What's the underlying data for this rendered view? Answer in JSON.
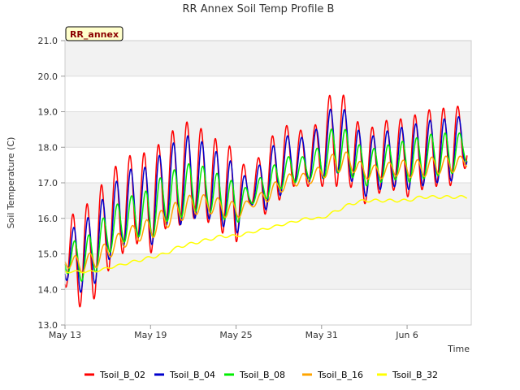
{
  "chart_data": {
    "type": "line",
    "title": "RR Annex Soil Temp Profile B",
    "xlabel": "Time",
    "ylabel": "Soil Temperature (C)",
    "ylim": [
      13.0,
      21.0
    ],
    "xlim_days": [
      0,
      28.5
    ],
    "x_ticks": [
      {
        "day": 0,
        "label": "May 13"
      },
      {
        "day": 6,
        "label": "May 19"
      },
      {
        "day": 12,
        "label": "May 25"
      },
      {
        "day": 18,
        "label": "May 31"
      },
      {
        "day": 24,
        "label": "Jun 6"
      }
    ],
    "y_ticks": [
      "13.0",
      "14.0",
      "15.0",
      "16.0",
      "17.0",
      "18.0",
      "19.0",
      "20.0",
      "21.0"
    ],
    "annotation": "RR_annex",
    "legend_position": "bottom",
    "grid": true,
    "colors": {
      "band": "#f2f2f2",
      "grid": "#dddddd",
      "badge_fill": "#ffffcc"
    },
    "series": [
      {
        "name": "Tsoil_B_02",
        "color": "#ff0000",
        "mean_days": [
          0,
          1,
          2,
          3,
          4,
          5,
          6,
          7,
          8,
          9,
          10,
          11,
          12,
          13,
          14,
          15,
          16,
          17,
          18,
          19,
          20,
          21,
          22,
          23,
          24,
          25,
          26,
          27,
          28
        ],
        "mean": [
          15.0,
          14.9,
          15.1,
          15.9,
          16.3,
          16.6,
          16.4,
          17.0,
          17.2,
          17.4,
          17.1,
          16.9,
          16.6,
          16.8,
          17.1,
          17.5,
          17.8,
          17.6,
          17.9,
          18.4,
          18.0,
          17.4,
          17.7,
          17.8,
          17.7,
          17.9,
          18.0,
          18.0,
          18.3
        ],
        "amp": [
          0.9,
          1.4,
          1.4,
          1.4,
          1.3,
          1.3,
          1.4,
          1.3,
          1.4,
          1.4,
          1.2,
          1.3,
          1.3,
          0.4,
          1.0,
          1.0,
          0.9,
          0.7,
          1.0,
          1.5,
          1.1,
          1.0,
          1.0,
          1.0,
          1.1,
          1.1,
          1.1,
          1.1,
          0.9
        ]
      },
      {
        "name": "Tsoil_B_04",
        "color": "#0000cc",
        "mean_days": [
          0,
          1,
          2,
          3,
          4,
          5,
          6,
          7,
          8,
          9,
          10,
          11,
          12,
          13,
          14,
          15,
          16,
          17,
          18,
          19,
          20,
          21,
          22,
          23,
          24,
          25,
          26,
          27,
          28
        ],
        "mean": [
          14.9,
          14.9,
          15.1,
          15.8,
          16.2,
          16.5,
          16.3,
          16.9,
          17.0,
          17.2,
          17.0,
          16.8,
          16.5,
          16.7,
          17.0,
          17.4,
          17.7,
          17.6,
          17.9,
          18.3,
          18.0,
          17.4,
          17.6,
          17.7,
          17.7,
          17.8,
          17.9,
          17.9,
          18.2
        ],
        "amp": [
          0.6,
          1.0,
          1.0,
          1.0,
          1.0,
          1.0,
          1.1,
          1.1,
          1.2,
          1.2,
          1.0,
          1.0,
          1.0,
          0.3,
          0.8,
          0.8,
          0.7,
          0.6,
          0.8,
          1.0,
          0.9,
          0.8,
          0.8,
          0.8,
          0.9,
          0.9,
          0.9,
          0.9,
          0.7
        ]
      },
      {
        "name": "Tsoil_B_08",
        "color": "#00ee00",
        "mean_days": [
          0,
          1,
          2,
          3,
          4,
          5,
          6,
          7,
          8,
          9,
          10,
          11,
          12,
          13,
          14,
          15,
          16,
          17,
          18,
          19,
          20,
          21,
          22,
          23,
          24,
          25,
          26,
          27,
          28
        ],
        "mean": [
          14.9,
          14.8,
          15.0,
          15.6,
          15.9,
          16.1,
          16.1,
          16.6,
          16.7,
          16.9,
          16.8,
          16.6,
          16.4,
          16.6,
          16.9,
          17.2,
          17.4,
          17.4,
          17.6,
          18.0,
          17.8,
          17.4,
          17.5,
          17.6,
          17.6,
          17.7,
          17.8,
          17.8,
          18.0
        ],
        "amp": [
          0.4,
          0.6,
          0.6,
          0.6,
          0.6,
          0.6,
          0.7,
          0.7,
          0.7,
          0.7,
          0.6,
          0.6,
          0.6,
          0.2,
          0.4,
          0.4,
          0.4,
          0.3,
          0.5,
          0.7,
          0.6,
          0.5,
          0.5,
          0.5,
          0.6,
          0.6,
          0.6,
          0.6,
          0.4
        ]
      },
      {
        "name": "Tsoil_B_16",
        "color": "#ffa500",
        "mean_days": [
          0,
          1,
          2,
          3,
          4,
          5,
          6,
          7,
          8,
          9,
          10,
          11,
          12,
          13,
          14,
          15,
          16,
          17,
          18,
          19,
          20,
          21,
          22,
          23,
          24,
          25,
          26,
          27,
          28
        ],
        "mean": [
          14.8,
          14.7,
          14.8,
          15.1,
          15.4,
          15.6,
          15.7,
          16.0,
          16.2,
          16.4,
          16.4,
          16.3,
          16.2,
          16.4,
          16.6,
          16.9,
          17.1,
          17.1,
          17.3,
          17.6,
          17.6,
          17.3,
          17.3,
          17.4,
          17.4,
          17.4,
          17.5,
          17.5,
          17.6
        ],
        "amp": [
          0.15,
          0.25,
          0.25,
          0.25,
          0.25,
          0.25,
          0.3,
          0.3,
          0.3,
          0.3,
          0.25,
          0.25,
          0.25,
          0.1,
          0.2,
          0.2,
          0.2,
          0.15,
          0.2,
          0.3,
          0.25,
          0.2,
          0.2,
          0.2,
          0.25,
          0.25,
          0.25,
          0.25,
          0.15
        ]
      },
      {
        "name": "Tsoil_B_32",
        "color": "#ffff00",
        "mean_days": [
          0,
          1,
          2,
          3,
          4,
          5,
          6,
          7,
          8,
          9,
          10,
          11,
          12,
          13,
          14,
          15,
          16,
          17,
          18,
          19,
          20,
          21,
          22,
          23,
          24,
          25,
          26,
          27,
          28
        ],
        "mean": [
          14.5,
          14.5,
          14.5,
          14.6,
          14.7,
          14.8,
          14.9,
          15.0,
          15.2,
          15.3,
          15.4,
          15.5,
          15.5,
          15.6,
          15.7,
          15.8,
          15.9,
          16.0,
          16.0,
          16.2,
          16.4,
          16.5,
          16.5,
          16.5,
          16.5,
          16.6,
          16.6,
          16.6,
          16.6
        ],
        "amp": [
          0.03,
          0.03,
          0.03,
          0.03,
          0.03,
          0.04,
          0.04,
          0.04,
          0.04,
          0.04,
          0.04,
          0.04,
          0.04,
          0.03,
          0.03,
          0.03,
          0.03,
          0.03,
          0.03,
          0.04,
          0.04,
          0.04,
          0.04,
          0.04,
          0.04,
          0.04,
          0.04,
          0.04,
          0.04
        ]
      }
    ]
  }
}
